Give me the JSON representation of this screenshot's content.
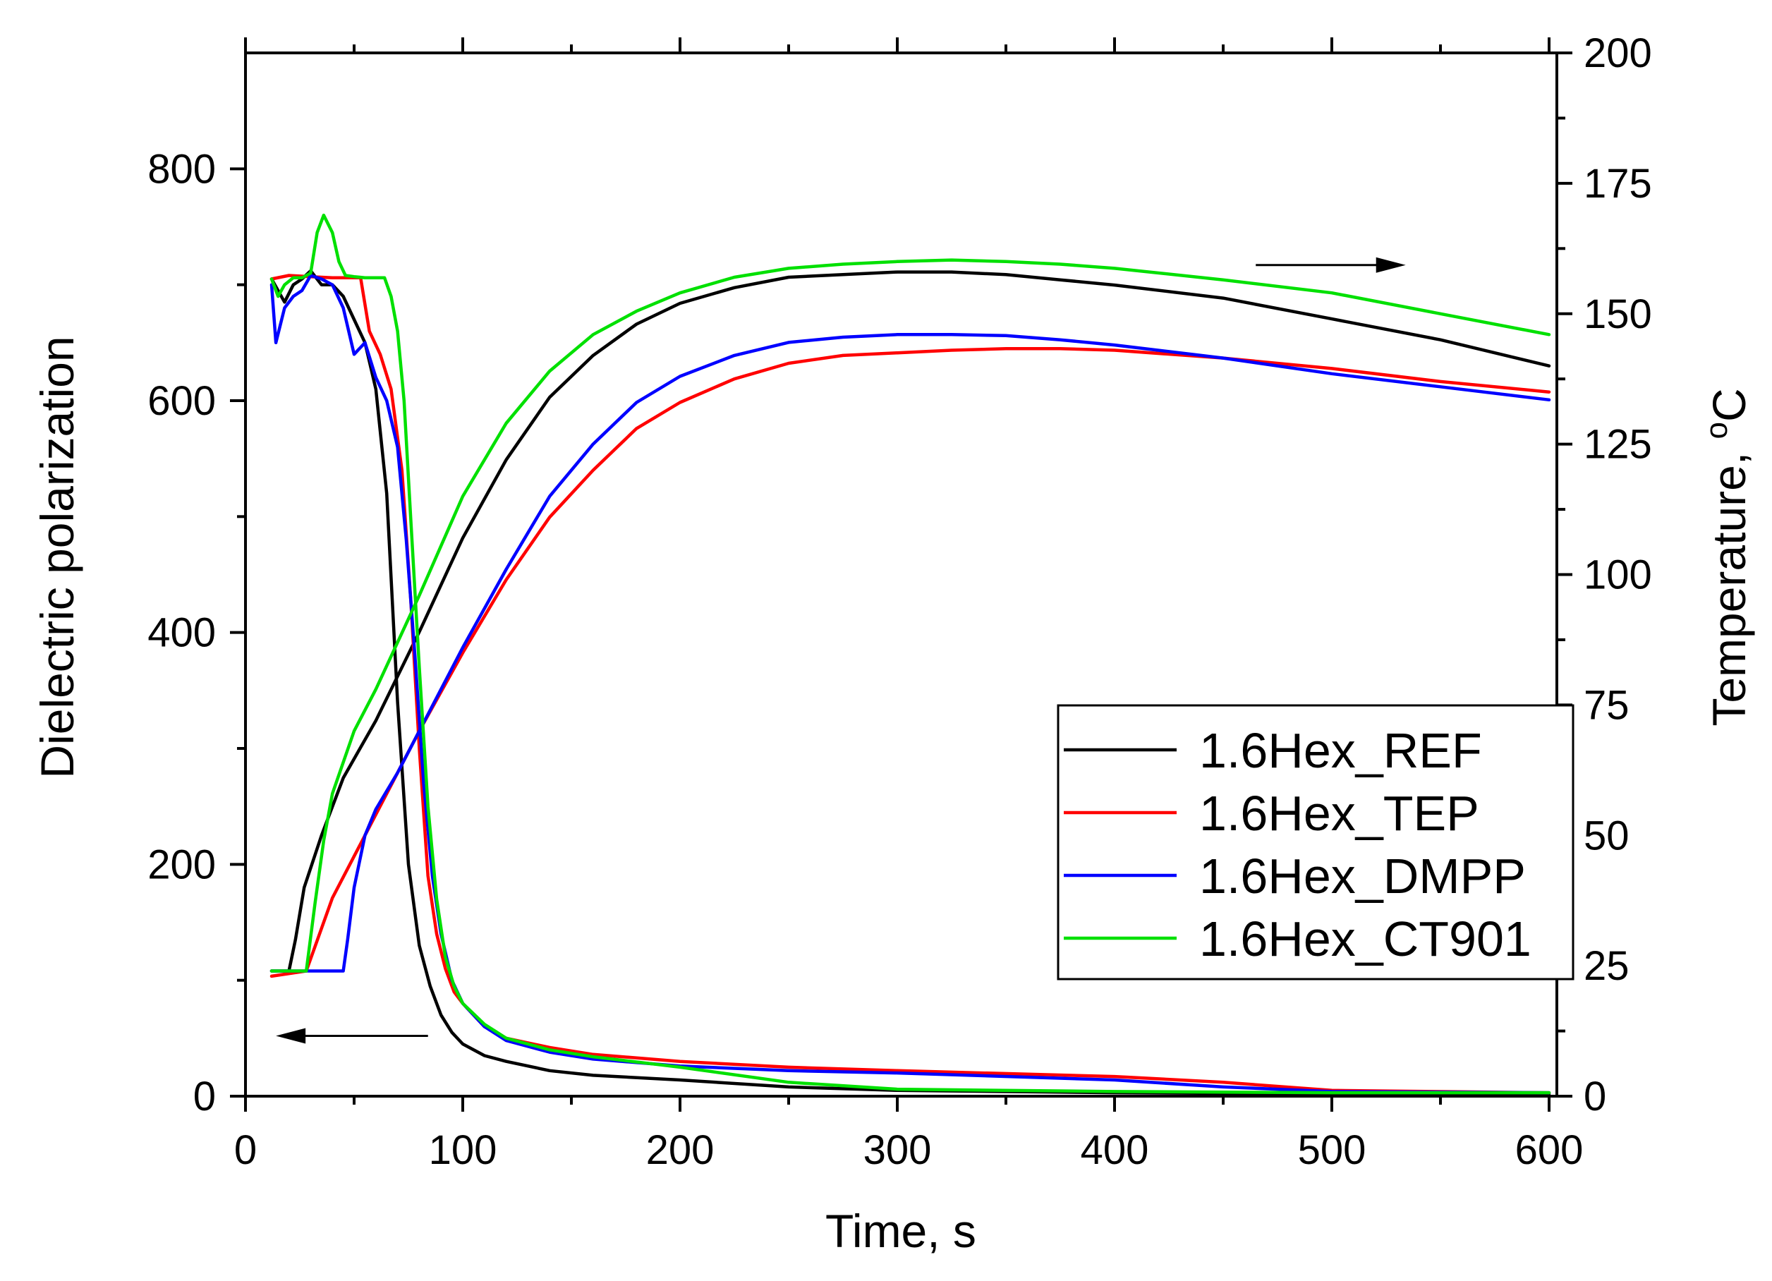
{
  "chart_data": {
    "type": "line",
    "xlabel": "Time, s",
    "ylabel_left": "Dielectric polarization",
    "ylabel_right": "Temperature, °C",
    "ylabel_right_parts": {
      "prefix": "Temperature, ",
      "superscript": "o",
      "unit": "C"
    },
    "xlim": [
      0,
      600
    ],
    "ylim_left": [
      0,
      900
    ],
    "ylim_right": [
      0,
      200
    ],
    "xticks": [
      0,
      100,
      200,
      300,
      400,
      500,
      600
    ],
    "yticks_left": [
      0,
      200,
      400,
      600,
      800
    ],
    "yticks_right": [
      0,
      25,
      50,
      75,
      100,
      125,
      150,
      175,
      200
    ],
    "legend_position": "middle-right",
    "annotations": [
      {
        "type": "arrow",
        "direction": "left",
        "meaning": "polarization curves use left axis",
        "from": [
          84,
          52
        ],
        "to": [
          14,
          52
        ]
      },
      {
        "type": "arrow",
        "direction": "right",
        "meaning": "temperature curves use right axis",
        "from": [
          465,
          717
        ],
        "to": [
          534,
          717
        ]
      }
    ],
    "series": [
      {
        "name": "1.6Hex_REF",
        "color": "#000000",
        "polarization": {
          "x": [
            12,
            18,
            22,
            26,
            30,
            35,
            40,
            45,
            50,
            55,
            60,
            65,
            70,
            75,
            80,
            85,
            90,
            95,
            100,
            110,
            120,
            140,
            160,
            200,
            250,
            300,
            400,
            500,
            600
          ],
          "y": [
            705,
            685,
            700,
            705,
            712,
            700,
            700,
            690,
            670,
            650,
            610,
            520,
            340,
            200,
            130,
            95,
            70,
            55,
            45,
            35,
            30,
            22,
            18,
            14,
            8,
            5,
            3,
            2,
            2
          ]
        },
        "temperature": {
          "x": [
            12,
            20,
            23,
            27,
            35,
            45,
            60,
            80,
            100,
            120,
            140,
            160,
            180,
            200,
            225,
            250,
            275,
            300,
            325,
            350,
            375,
            400,
            450,
            500,
            550,
            600
          ],
          "y": [
            24,
            24,
            30,
            40,
            50,
            61,
            72,
            89,
            107,
            122,
            134,
            142,
            148,
            152,
            155,
            157,
            157.5,
            158,
            158,
            157.5,
            156.5,
            155.5,
            153,
            149,
            145,
            140
          ]
        }
      },
      {
        "name": "1.6Hex_TEP",
        "color": "#ff0000",
        "polarization": {
          "x": [
            12,
            20,
            30,
            40,
            50,
            53,
            57,
            62,
            67,
            72,
            76,
            80,
            84,
            88,
            92,
            96,
            100,
            110,
            120,
            140,
            160,
            200,
            250,
            300,
            400,
            450,
            500,
            600
          ],
          "y": [
            705,
            708,
            707,
            706,
            706,
            706,
            660,
            640,
            610,
            540,
            430,
            300,
            190,
            140,
            110,
            90,
            80,
            60,
            50,
            42,
            36,
            30,
            25,
            22,
            17,
            12,
            5,
            3
          ]
        },
        "temperature": {
          "x": [
            12,
            28,
            40,
            60,
            80,
            100,
            120,
            140,
            160,
            180,
            200,
            225,
            250,
            275,
            300,
            325,
            350,
            375,
            400,
            450,
            500,
            550,
            600
          ],
          "y": [
            23,
            24,
            38,
            54,
            70,
            85,
            99,
            111,
            120,
            128,
            133,
            137.5,
            140.5,
            142,
            142.5,
            143,
            143.3,
            143.3,
            143,
            141.5,
            139.5,
            137,
            135
          ]
        }
      },
      {
        "name": "1.6Hex_DMPP",
        "color": "#0000ff",
        "polarization": {
          "x": [
            12,
            14,
            18,
            22,
            26,
            30,
            35,
            40,
            45,
            50,
            55,
            60,
            65,
            70,
            74,
            78,
            82,
            86,
            90,
            95,
            100,
            110,
            120,
            140,
            160,
            200,
            250,
            300,
            400,
            450,
            500,
            600
          ],
          "y": [
            700,
            650,
            680,
            690,
            695,
            708,
            705,
            700,
            680,
            640,
            650,
            620,
            600,
            560,
            480,
            380,
            270,
            190,
            140,
            100,
            80,
            60,
            48,
            38,
            32,
            26,
            22,
            20,
            14,
            8,
            4,
            3
          ]
        },
        "temperature": {
          "x": [
            12,
            45,
            47,
            50,
            55,
            60,
            70,
            80,
            90,
            100,
            120,
            140,
            160,
            180,
            200,
            225,
            250,
            275,
            300,
            325,
            350,
            375,
            400,
            450,
            500,
            550,
            600
          ],
          "y": [
            24,
            24,
            30,
            40,
            50,
            55,
            62,
            70,
            78,
            86,
            101,
            115,
            125,
            133,
            138,
            142,
            144.5,
            145.5,
            146,
            146,
            145.8,
            145,
            144,
            141.5,
            138.5,
            136,
            133.5
          ]
        }
      },
      {
        "name": "1.6Hex_CT901",
        "color": "#00e000",
        "polarization": {
          "x": [
            12,
            15,
            18,
            22,
            26,
            30,
            33,
            36,
            40,
            43,
            46,
            50,
            55,
            60,
            64,
            67,
            70,
            73,
            76,
            80,
            84,
            88,
            92,
            96,
            100,
            110,
            120,
            140,
            160,
            200,
            250,
            300,
            400,
            500,
            600
          ],
          "y": [
            705,
            690,
            700,
            706,
            706,
            710,
            745,
            760,
            745,
            720,
            708,
            707,
            706,
            706,
            706,
            690,
            660,
            600,
            500,
            370,
            250,
            170,
            120,
            95,
            80,
            62,
            50,
            40,
            34,
            25,
            12,
            6,
            4,
            3,
            3
          ]
        },
        "temperature": {
          "x": [
            12,
            28,
            32,
            36,
            40,
            50,
            60,
            80,
            100,
            120,
            140,
            160,
            180,
            200,
            225,
            250,
            275,
            300,
            325,
            350,
            375,
            400,
            450,
            500,
            550,
            600
          ],
          "y": [
            24,
            24,
            37,
            49,
            58,
            70,
            78,
            96,
            115,
            129,
            139,
            146,
            150.5,
            154,
            157,
            158.7,
            159.5,
            160,
            160.3,
            160,
            159.5,
            158.7,
            156.5,
            154,
            150,
            146
          ]
        }
      }
    ]
  }
}
